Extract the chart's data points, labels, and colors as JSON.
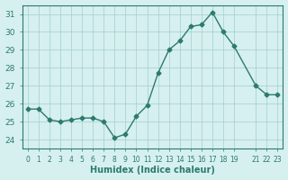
{
  "x": [
    0,
    1,
    2,
    3,
    4,
    5,
    6,
    7,
    8,
    9,
    10,
    11,
    12,
    13,
    14,
    15,
    16,
    17,
    18,
    19,
    21,
    22,
    23
  ],
  "y": [
    25.7,
    25.7,
    25.1,
    25.0,
    25.1,
    25.2,
    25.2,
    25.0,
    24.1,
    24.3,
    25.3,
    25.9,
    27.7,
    29.0,
    29.5,
    30.3,
    30.4,
    31.1,
    30.0,
    29.2,
    27.0,
    26.5,
    26.5
  ],
  "line_color": "#2d7a6e",
  "marker_color": "#2d7a6e",
  "bg_color": "#d6f0ef",
  "grid_color": "#a0cece",
  "xlabel": "Humidex (Indice chaleur)",
  "ylabel": "",
  "title": "",
  "ylim": [
    23.5,
    31.5
  ],
  "xlim": [
    -0.5,
    23.5
  ],
  "yticks": [
    24,
    25,
    26,
    27,
    28,
    29,
    30,
    31
  ],
  "xticks": [
    0,
    1,
    2,
    3,
    4,
    5,
    6,
    7,
    8,
    9,
    10,
    11,
    12,
    13,
    14,
    15,
    16,
    17,
    18,
    19,
    21,
    22,
    23
  ]
}
